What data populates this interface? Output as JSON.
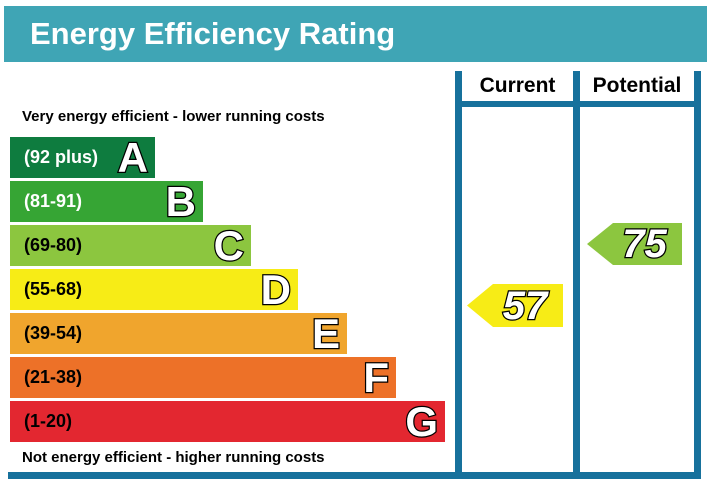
{
  "chart_data": {
    "type": "bar",
    "title": "Energy Efficiency Rating",
    "columns": [
      "Current",
      "Potential"
    ],
    "annotations": {
      "top": "Very energy efficient - lower running costs",
      "bottom": "Not energy efficient - higher running costs"
    },
    "bands": [
      {
        "letter": "A",
        "range_label": "(92 plus)",
        "min": 92,
        "max": 100,
        "color": "#0e7c3f"
      },
      {
        "letter": "B",
        "range_label": "(81-91)",
        "min": 81,
        "max": 91,
        "color": "#36a534"
      },
      {
        "letter": "C",
        "range_label": "(69-80)",
        "min": 69,
        "max": 80,
        "color": "#8cc63f"
      },
      {
        "letter": "D",
        "range_label": "(55-68)",
        "min": 55,
        "max": 68,
        "color": "#f7ec16"
      },
      {
        "letter": "E",
        "range_label": "(39-54)",
        "min": 39,
        "max": 54,
        "color": "#f0a52d"
      },
      {
        "letter": "F",
        "range_label": "(21-38)",
        "min": 21,
        "max": 38,
        "color": "#ed7128"
      },
      {
        "letter": "G",
        "range_label": "(1-20)",
        "min": 1,
        "max": 20,
        "color": "#e32730"
      }
    ],
    "current": {
      "value": 57,
      "band": "D",
      "arrow_color": "#f7ec16"
    },
    "potential": {
      "value": 75,
      "band": "C",
      "arrow_color": "#8cc63f"
    }
  },
  "colors": {
    "banner_teal": "#3fa5b5",
    "grid_teal": "#17719c",
    "title_text": "#ffffff"
  }
}
